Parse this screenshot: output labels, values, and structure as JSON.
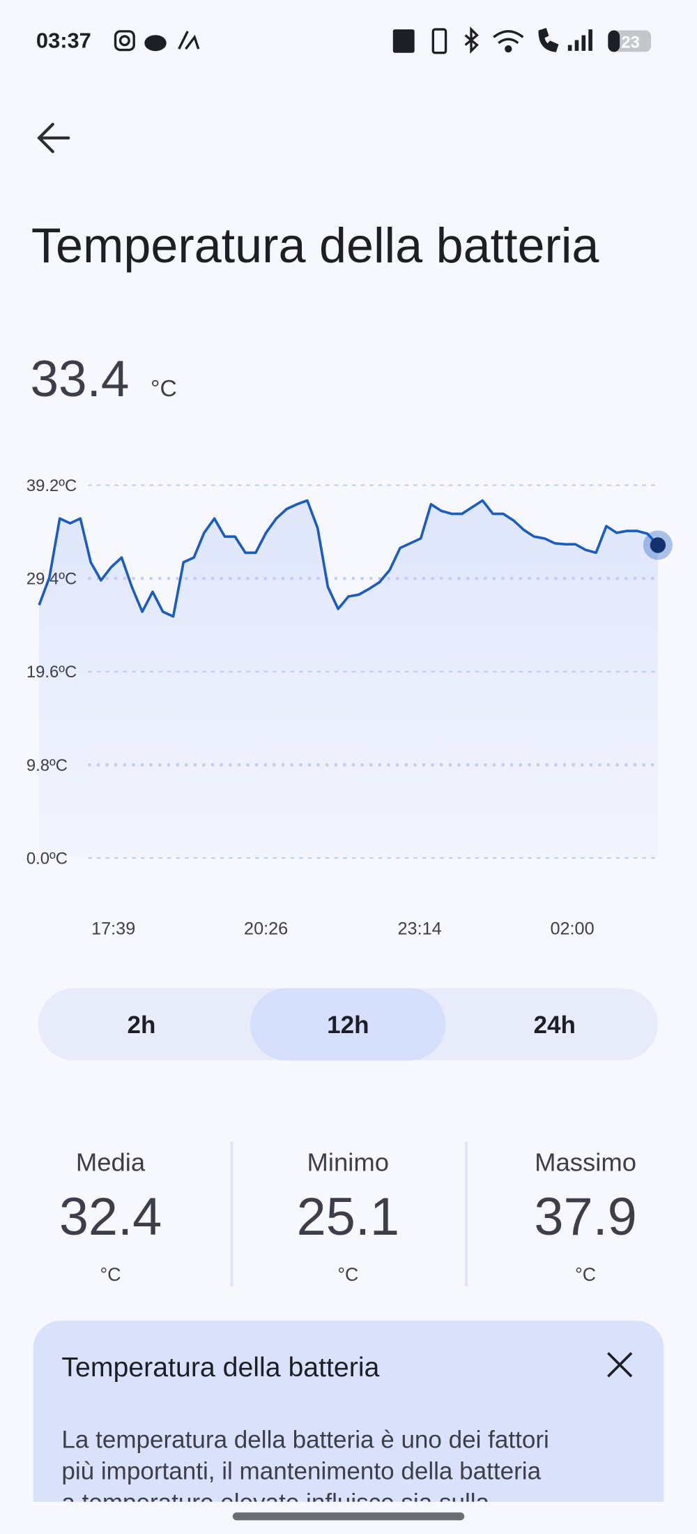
{
  "status": {
    "time": "03:37",
    "battery": "23"
  },
  "header": {
    "title": "Temperatura della batteria"
  },
  "current": {
    "value": 33.4,
    "unit": "°C"
  },
  "chart_data": {
    "type": "line",
    "color": "#1a5cc0",
    "grid": true,
    "x": [
      0,
      1,
      2,
      3,
      4,
      5,
      6,
      7,
      8,
      9,
      10,
      11,
      12,
      13,
      14,
      15,
      16,
      17,
      18,
      19,
      20,
      21,
      22,
      23,
      24,
      25,
      26,
      27,
      28,
      29,
      30,
      31,
      32,
      33,
      34,
      35,
      36,
      37,
      38,
      39,
      40,
      41,
      42,
      43,
      44,
      45,
      46,
      47,
      48,
      49,
      50,
      51,
      52,
      53,
      54,
      55,
      56,
      57,
      58,
      59,
      60
    ],
    "values": [
      26.6,
      29.5,
      35.7,
      35.2,
      35.7,
      31.1,
      29.2,
      30.6,
      31.6,
      28.5,
      25.9,
      28.0,
      25.9,
      25.4,
      31.1,
      31.6,
      34.2,
      35.7,
      33.8,
      33.8,
      32.1,
      32.1,
      34.2,
      35.7,
      36.7,
      37.2,
      37.6,
      34.7,
      28.5,
      26.2,
      27.5,
      27.7,
      28.3,
      29.0,
      30.3,
      32.6,
      33.1,
      33.6,
      37.2,
      36.5,
      36.2,
      36.2,
      36.9,
      37.6,
      36.2,
      36.2,
      35.5,
      34.5,
      33.8,
      33.6,
      33.1,
      33.0,
      33.0,
      32.4,
      32.1,
      34.9,
      34.2,
      34.4,
      34.4,
      34.1,
      32.9
    ],
    "xlim": [
      0,
      60
    ],
    "xticks": [
      {
        "value": 7.2,
        "label": "17:39"
      },
      {
        "value": 22,
        "label": "20:26"
      },
      {
        "value": 36.9,
        "label": "23:14"
      },
      {
        "value": 51.7,
        "label": "02:00"
      }
    ],
    "ylim": [
      0,
      39.2
    ],
    "yticks": [
      {
        "value": 0,
        "label": "0.0ºC"
      },
      {
        "value": 9.8,
        "label": "9.8ºC"
      },
      {
        "value": 19.6,
        "label": "19.6ºC"
      },
      {
        "value": 29.4,
        "label": "29.4ºC"
      },
      {
        "value": 39.2,
        "label": "39.2ºC"
      }
    ]
  },
  "tabs": {
    "items": [
      "2h",
      "12h",
      "24h"
    ],
    "selected_index": 1
  },
  "stats": [
    {
      "label": "Media",
      "value": 32.4,
      "unit": "°C"
    },
    {
      "label": "Minimo",
      "value": 25.1,
      "unit": "°C"
    },
    {
      "label": "Massimo",
      "value": 37.9,
      "unit": "°C"
    }
  ],
  "card": {
    "title": "Temperatura della batteria",
    "lines": [
      "La temperatura della batteria è uno dei fattori",
      "più importanti, il mantenimento della batteria",
      "a temperature elevate influisce sia sulla"
    ]
  }
}
